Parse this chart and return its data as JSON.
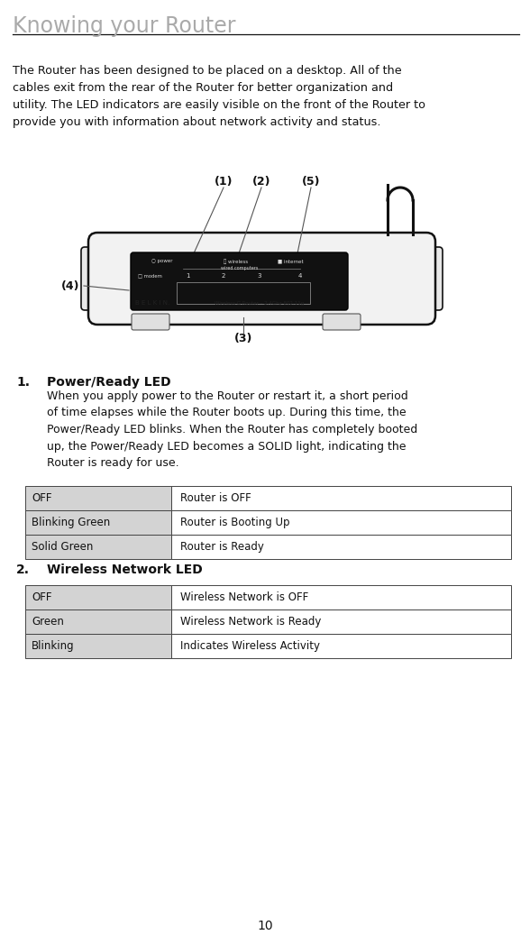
{
  "title": "Knowing your Router",
  "title_color": "#aaaaaa",
  "title_fontsize": 17,
  "separator_color": "#111111",
  "bg_color": "#ffffff",
  "body_text": "The Router has been designed to be placed on a desktop. All of the\ncables exit from the rear of the Router for better organization and\nutility. The LED indicators are easily visible on the front of the Router to\nprovide you with information about network activity and status.",
  "body_fontsize": 9.2,
  "body_color": "#111111",
  "section1_title": "Power/Ready LED",
  "section1_number": "1.",
  "section1_body": "When you apply power to the Router or restart it, a short period\nof time elapses while the Router boots up. During this time, the\nPower/Ready LED blinks. When the Router has completely booted\nup, the Power/Ready LED becomes a SOLID light, indicating the\nRouter is ready for use.",
  "section2_title": "Wireless Network LED",
  "section2_number": "2.",
  "table1": [
    [
      "OFF",
      "Router is OFF"
    ],
    [
      "Blinking Green",
      "Router is Booting Up"
    ],
    [
      "Solid Green",
      "Router is Ready"
    ]
  ],
  "table2": [
    [
      "OFF",
      "Wireless Network is OFF"
    ],
    [
      "Green",
      "Wireless Network is Ready"
    ],
    [
      "Blinking",
      "Indicates Wireless Activity"
    ]
  ],
  "table_bg_left": "#d3d3d3",
  "table_bg_right": "#ffffff",
  "table_border": "#444444",
  "table_fontsize": 8.5,
  "page_number": "10",
  "label_1": "(1)",
  "label_2": "(2)",
  "label_3": "(3)",
  "label_4": "(4)",
  "label_5": "(5)",
  "label_fontsize": 9,
  "label_fontweight": "bold"
}
